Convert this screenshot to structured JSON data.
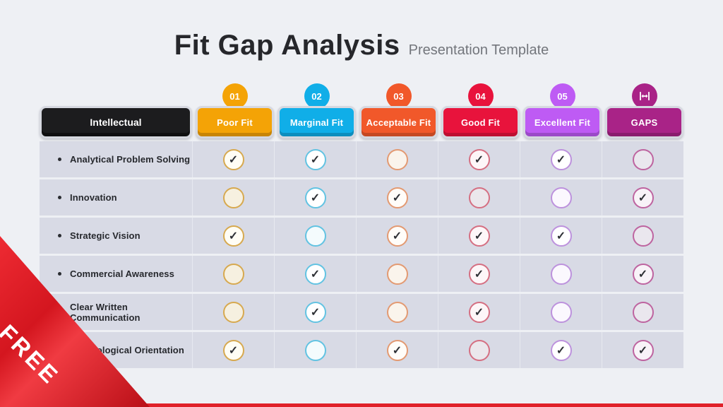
{
  "title": {
    "main": "Fit Gap Analysis",
    "subtitle": "Presentation Template"
  },
  "ribbon": {
    "label": "FREE"
  },
  "accent": {
    "bottom_bar": "#e02129"
  },
  "table": {
    "category_header": "Intellectual",
    "category_bg": "#1c1c1e",
    "columns": [
      {
        "id": "poor-fit",
        "badge": "01",
        "label": "Poor Fit",
        "color": "#F4A306",
        "ring": "#D7A94F",
        "tint": "#f6f0e0",
        "checked_fill": "#fffdf4"
      },
      {
        "id": "marginal-fit",
        "badge": "02",
        "label": "Marginal Fit",
        "color": "#10AEE8",
        "ring": "#62C3E2",
        "tint": "#f4fbfd",
        "checked_fill": "#ffffff"
      },
      {
        "id": "acceptable-fit",
        "badge": "03",
        "label": "Acceptable Fit",
        "color": "#F1582A",
        "ring": "#E39A72",
        "tint": "#faf4ec",
        "checked_fill": "#fffdf9"
      },
      {
        "id": "good-fit",
        "badge": "04",
        "label": "Good Fit",
        "color": "#E8133C",
        "ring": "#D56F82",
        "tint": "#ebe7ec",
        "checked_fill": "#fdf6f8"
      },
      {
        "id": "excellent-fit",
        "badge": "05",
        "label": "Excellent Fit",
        "color": "#BE5BF4",
        "ring": "#BD92DD",
        "tint": "#fbf8fe",
        "checked_fill": "#ffffff"
      },
      {
        "id": "gaps",
        "badge": "",
        "badge_icon": "gap-width-icon",
        "label": "GAPS",
        "color": "#A92387",
        "ring": "#BE64A0",
        "tint": "#eae7ee",
        "checked_fill": "#f8f3f8"
      }
    ],
    "rows": [
      {
        "label": "Analytical Problem Solving",
        "checks": [
          true,
          true,
          false,
          true,
          true,
          false
        ]
      },
      {
        "label": "Innovation",
        "checks": [
          false,
          true,
          true,
          false,
          false,
          true
        ]
      },
      {
        "label": "Strategic Vision",
        "checks": [
          true,
          false,
          true,
          true,
          true,
          false
        ]
      },
      {
        "label": "Commercial Awareness",
        "checks": [
          false,
          true,
          false,
          true,
          false,
          true
        ]
      },
      {
        "label": "Clear Written Communication",
        "checks": [
          false,
          true,
          false,
          true,
          false,
          false
        ]
      },
      {
        "label": "Technological Orientation",
        "checks": [
          true,
          false,
          true,
          false,
          true,
          true
        ]
      }
    ]
  },
  "check_glyph": "✓"
}
